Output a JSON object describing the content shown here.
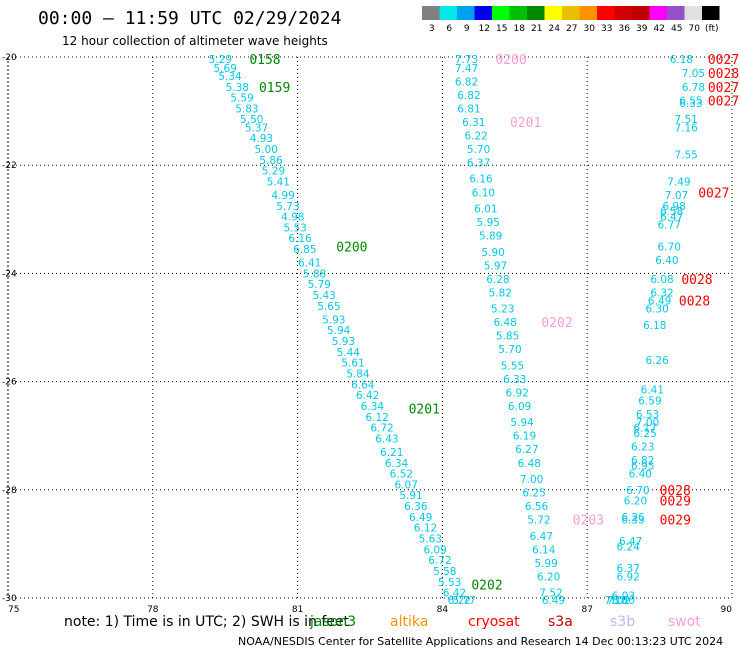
{
  "title": "00:00 — 11:59 UTC 02/29/2024",
  "subtitle": "12 hour collection of altimeter wave heights",
  "legend": {
    "colors": [
      "#808080",
      "#00e8e8",
      "#00a0f0",
      "#0000f0",
      "#00ff00",
      "#00c000",
      "#008800",
      "#ffff00",
      "#e8c000",
      "#ff9000",
      "#ff0000",
      "#d00000",
      "#c00000",
      "#ff00ff",
      "#9850c8",
      "#e0e0e0",
      "#000000"
    ],
    "labels": [
      "3",
      "6",
      "9",
      "12",
      "15",
      "18",
      "21",
      "24",
      "27",
      "30",
      "33",
      "36",
      "39",
      "42",
      "45",
      "70",
      "(ft)"
    ]
  },
  "note": "note:  1) Time is in UTC; 2) SWH is in feet",
  "satellites": [
    {
      "name": "jason3",
      "color": "#008800"
    },
    {
      "name": "altika",
      "color": "#ff9000"
    },
    {
      "name": "cryosat",
      "color": "#ff0000"
    },
    {
      "name": "s3a",
      "color": "#c00000"
    },
    {
      "name": "s3b",
      "color": "#c8b4f0"
    },
    {
      "name": "swot",
      "color": "#ff9ad8"
    }
  ],
  "footer": "NOAA/NESDIS Center for Satellite Applications and Research    14 Dec 00:13:23 UTC 2024",
  "chart_data": {
    "type": "scatter",
    "xlim": [
      75,
      90
    ],
    "ylim": [
      -30,
      -20
    ],
    "x_ticks": [
      "75",
      "78",
      "81",
      "84",
      "87",
      "90"
    ],
    "y_ticks": [
      "-20",
      "-22",
      "-24",
      "-26",
      "-28",
      "-30"
    ],
    "grid": true,
    "series": [
      {
        "name": "jason3",
        "color": "#00c8e8",
        "points": [
          [
            79.4,
            -20.0,
            "5.29"
          ],
          [
            79.5,
            -20.2,
            "5.69"
          ],
          [
            79.6,
            -20.35,
            "5.34"
          ],
          [
            79.75,
            -20.55,
            "5.38"
          ],
          [
            79.85,
            -20.75,
            "5.59"
          ],
          [
            79.95,
            -20.95,
            "5.83"
          ],
          [
            80.05,
            -21.15,
            "5.50"
          ],
          [
            80.15,
            -21.3,
            "5.37"
          ],
          [
            80.25,
            -21.5,
            "4.93"
          ],
          [
            80.35,
            -21.7,
            "5.00"
          ],
          [
            80.45,
            -21.9,
            "5.86"
          ],
          [
            80.5,
            -22.1,
            "5.29"
          ],
          [
            80.6,
            -22.3,
            "5.41"
          ],
          [
            80.7,
            -22.55,
            "4.99"
          ],
          [
            80.8,
            -22.75,
            "5.73"
          ],
          [
            80.9,
            -22.95,
            "4.98"
          ],
          [
            80.95,
            -23.15,
            "5.53"
          ],
          [
            81.05,
            -23.35,
            "6.16"
          ],
          [
            81.15,
            -23.55,
            "6.85"
          ],
          [
            81.25,
            -23.8,
            "6.41"
          ],
          [
            81.35,
            -24.0,
            "5.88"
          ],
          [
            81.45,
            -24.2,
            "5.79"
          ],
          [
            81.55,
            -24.4,
            "5.43"
          ],
          [
            81.65,
            -24.6,
            "5.65"
          ],
          [
            81.75,
            -24.85,
            "5.93"
          ],
          [
            81.85,
            -25.05,
            "5.94"
          ],
          [
            81.95,
            -25.25,
            "5.93"
          ],
          [
            82.05,
            -25.45,
            "5.44"
          ],
          [
            82.15,
            -25.65,
            "5.61"
          ],
          [
            82.25,
            -25.85,
            "5.84"
          ],
          [
            82.35,
            -26.05,
            "6.64"
          ],
          [
            82.45,
            -26.25,
            "6.42"
          ],
          [
            82.55,
            -26.45,
            "6.34"
          ],
          [
            82.65,
            -26.65,
            "6.12"
          ],
          [
            82.75,
            -26.85,
            "6.72"
          ],
          [
            82.85,
            -27.05,
            "6.43"
          ],
          [
            82.95,
            -27.3,
            "6.21"
          ],
          [
            83.05,
            -27.5,
            "6.34"
          ],
          [
            83.15,
            -27.7,
            "6.52"
          ],
          [
            83.25,
            -27.9,
            "6.07"
          ],
          [
            83.35,
            -28.1,
            "5.91"
          ],
          [
            83.45,
            -28.3,
            "6.36"
          ],
          [
            83.55,
            -28.5,
            "6.49"
          ],
          [
            83.65,
            -28.7,
            "6.12"
          ],
          [
            83.75,
            -28.9,
            "5.63"
          ],
          [
            83.85,
            -29.1,
            "6.09"
          ],
          [
            83.95,
            -29.3,
            "6.72"
          ],
          [
            84.05,
            -29.5,
            "5.58"
          ],
          [
            84.15,
            -29.7,
            "5.53"
          ],
          [
            84.25,
            -29.9,
            "6.42"
          ],
          [
            84.35,
            -30.1,
            "6.22"
          ],
          [
            84.45,
            -30.3,
            "5.77"
          ]
        ]
      },
      {
        "name": "swot",
        "color": "#00c8e8",
        "points": [
          [
            84.5,
            -20.0,
            "7.73"
          ],
          [
            84.5,
            -20.2,
            "7.47"
          ],
          [
            84.5,
            -20.45,
            "6.82"
          ],
          [
            84.55,
            -20.7,
            "6.82"
          ],
          [
            84.55,
            -20.95,
            "6.81"
          ],
          [
            84.65,
            -21.2,
            "6.31"
          ],
          [
            84.7,
            -21.45,
            "6.22"
          ],
          [
            84.75,
            -21.7,
            "5.70"
          ],
          [
            84.75,
            -21.95,
            "6.37"
          ],
          [
            84.8,
            -22.25,
            "6.16"
          ],
          [
            84.85,
            -22.5,
            "6.10"
          ],
          [
            84.9,
            -22.8,
            "6.01"
          ],
          [
            84.95,
            -23.05,
            "5.95"
          ],
          [
            85.0,
            -23.3,
            "5.89"
          ],
          [
            85.05,
            -23.6,
            "5.90"
          ],
          [
            85.1,
            -23.85,
            "5.97"
          ],
          [
            85.15,
            -24.1,
            "6.28"
          ],
          [
            85.2,
            -24.35,
            "5.82"
          ],
          [
            85.25,
            -24.65,
            "5.23"
          ],
          [
            85.3,
            -24.9,
            "6.48"
          ],
          [
            85.35,
            -25.15,
            "5.85"
          ],
          [
            85.4,
            -25.4,
            "5.70"
          ],
          [
            85.45,
            -25.7,
            "5.55"
          ],
          [
            85.5,
            -25.95,
            "6.33"
          ],
          [
            85.55,
            -26.2,
            "6.92"
          ],
          [
            85.6,
            -26.45,
            "6.09"
          ],
          [
            85.65,
            -26.75,
            "5.94"
          ],
          [
            85.7,
            -27.0,
            "6.19"
          ],
          [
            85.75,
            -27.25,
            "6.27"
          ],
          [
            85.8,
            -27.5,
            "6.48"
          ],
          [
            85.85,
            -27.8,
            "7.00"
          ],
          [
            85.9,
            -28.05,
            "6.25"
          ],
          [
            85.95,
            -28.3,
            "6.56"
          ],
          [
            86.0,
            -28.55,
            "5.72"
          ],
          [
            86.05,
            -28.85,
            "6.47"
          ],
          [
            86.1,
            -29.1,
            "6.14"
          ],
          [
            86.15,
            -29.35,
            "5.99"
          ],
          [
            86.2,
            -29.6,
            "6.20"
          ],
          [
            86.25,
            -29.9,
            "7.52"
          ],
          [
            86.3,
            -30.15,
            "6.49"
          ]
        ]
      },
      {
        "name": "s3a",
        "color": "#00c8e8",
        "points": [
          [
            88.95,
            -20.0,
            "6.18"
          ],
          [
            89.2,
            -20.3,
            "7.05"
          ],
          [
            89.2,
            -20.55,
            "6.78"
          ],
          [
            89.15,
            -20.8,
            "6.55"
          ],
          [
            89.15,
            -20.85,
            "6.33"
          ],
          [
            89.05,
            -21.15,
            "7.51"
          ],
          [
            89.05,
            -21.3,
            "7.16"
          ],
          [
            89.05,
            -21.8,
            "7.55"
          ],
          [
            88.9,
            -22.3,
            "7.49"
          ],
          [
            88.85,
            -22.55,
            "7.07"
          ],
          [
            88.8,
            -22.75,
            "6.98"
          ],
          [
            88.75,
            -22.85,
            "6.58"
          ],
          [
            88.75,
            -22.95,
            "6.47"
          ],
          [
            88.7,
            -23.1,
            "6.77"
          ],
          [
            88.7,
            -23.5,
            "6.70"
          ],
          [
            88.65,
            -23.75,
            "6.40"
          ],
          [
            88.55,
            -24.1,
            "6.08"
          ],
          [
            88.55,
            -24.35,
            "6.32"
          ],
          [
            88.5,
            -24.5,
            "6.49"
          ],
          [
            88.45,
            -24.65,
            "6.30"
          ],
          [
            88.4,
            -24.95,
            "6.18"
          ],
          [
            88.45,
            -25.6,
            "6.26"
          ],
          [
            88.35,
            -26.15,
            "6.41"
          ],
          [
            88.3,
            -26.35,
            "6.59"
          ],
          [
            88.25,
            -26.6,
            "6.53"
          ],
          [
            88.25,
            -26.75,
            "7.00"
          ],
          [
            88.2,
            -26.85,
            "6.17"
          ],
          [
            88.2,
            -26.95,
            "6.25"
          ],
          [
            88.15,
            -27.2,
            "6.23"
          ],
          [
            88.15,
            -27.45,
            "6.82"
          ],
          [
            88.15,
            -27.55,
            "6.95"
          ],
          [
            88.1,
            -27.7,
            "6.40"
          ],
          [
            88.05,
            -28.0,
            "6.70"
          ],
          [
            88.0,
            -28.2,
            "6.20"
          ],
          [
            87.95,
            -28.5,
            "6.26"
          ],
          [
            87.95,
            -28.55,
            "6.33"
          ],
          [
            87.9,
            -28.95,
            "6.47"
          ],
          [
            87.85,
            -29.05,
            "6.24"
          ],
          [
            87.85,
            -29.45,
            "6.37"
          ],
          [
            87.85,
            -29.6,
            "6.92"
          ],
          [
            87.75,
            -29.95,
            "6.03"
          ],
          [
            87.75,
            -30.1,
            "6.80"
          ],
          [
            87.65,
            -30.45,
            "7.02"
          ],
          [
            87.6,
            -30.55,
            "7.18"
          ]
        ]
      }
    ],
    "time_labels": [
      {
        "x": 80.0,
        "y": -20.0,
        "text": "0158",
        "color": "#008800"
      },
      {
        "x": 80.2,
        "y": -20.55,
        "text": "0159",
        "color": "#008800"
      },
      {
        "x": 81.8,
        "y": -23.5,
        "text": "0200",
        "color": "#008800"
      },
      {
        "x": 83.3,
        "y": -26.5,
        "text": "0201",
        "color": "#008800"
      },
      {
        "x": 84.6,
        "y": -29.75,
        "text": "0202",
        "color": "#008800"
      },
      {
        "x": 85.1,
        "y": -20.0,
        "text": "0200",
        "color": "#ff9ad8"
      },
      {
        "x": 85.4,
        "y": -21.2,
        "text": "0201",
        "color": "#ff9ad8"
      },
      {
        "x": 86.05,
        "y": -24.9,
        "text": "0202",
        "color": "#ff9ad8"
      },
      {
        "x": 86.7,
        "y": -28.55,
        "text": "0203",
        "color": "#ff9ad8"
      },
      {
        "x": 89.5,
        "y": -20.0,
        "text": "0027",
        "color": "#ff0000"
      },
      {
        "x": 89.5,
        "y": -20.3,
        "text": "0028",
        "color": "#ff0000"
      },
      {
        "x": 89.5,
        "y": -20.55,
        "text": "0027",
        "color": "#ff0000"
      },
      {
        "x": 89.5,
        "y": -20.8,
        "text": "0027",
        "color": "#ff0000"
      },
      {
        "x": 89.3,
        "y": -22.5,
        "text": "0027",
        "color": "#ff0000"
      },
      {
        "x": 88.95,
        "y": -24.1,
        "text": "0028",
        "color": "#ff0000"
      },
      {
        "x": 88.9,
        "y": -24.5,
        "text": "0028",
        "color": "#ff0000"
      },
      {
        "x": 88.5,
        "y": -28.0,
        "text": "0028",
        "color": "#ff0000"
      },
      {
        "x": 88.5,
        "y": -28.2,
        "text": "0029",
        "color": "#ff0000"
      },
      {
        "x": 88.5,
        "y": -28.55,
        "text": "0029",
        "color": "#ff0000"
      }
    ]
  }
}
